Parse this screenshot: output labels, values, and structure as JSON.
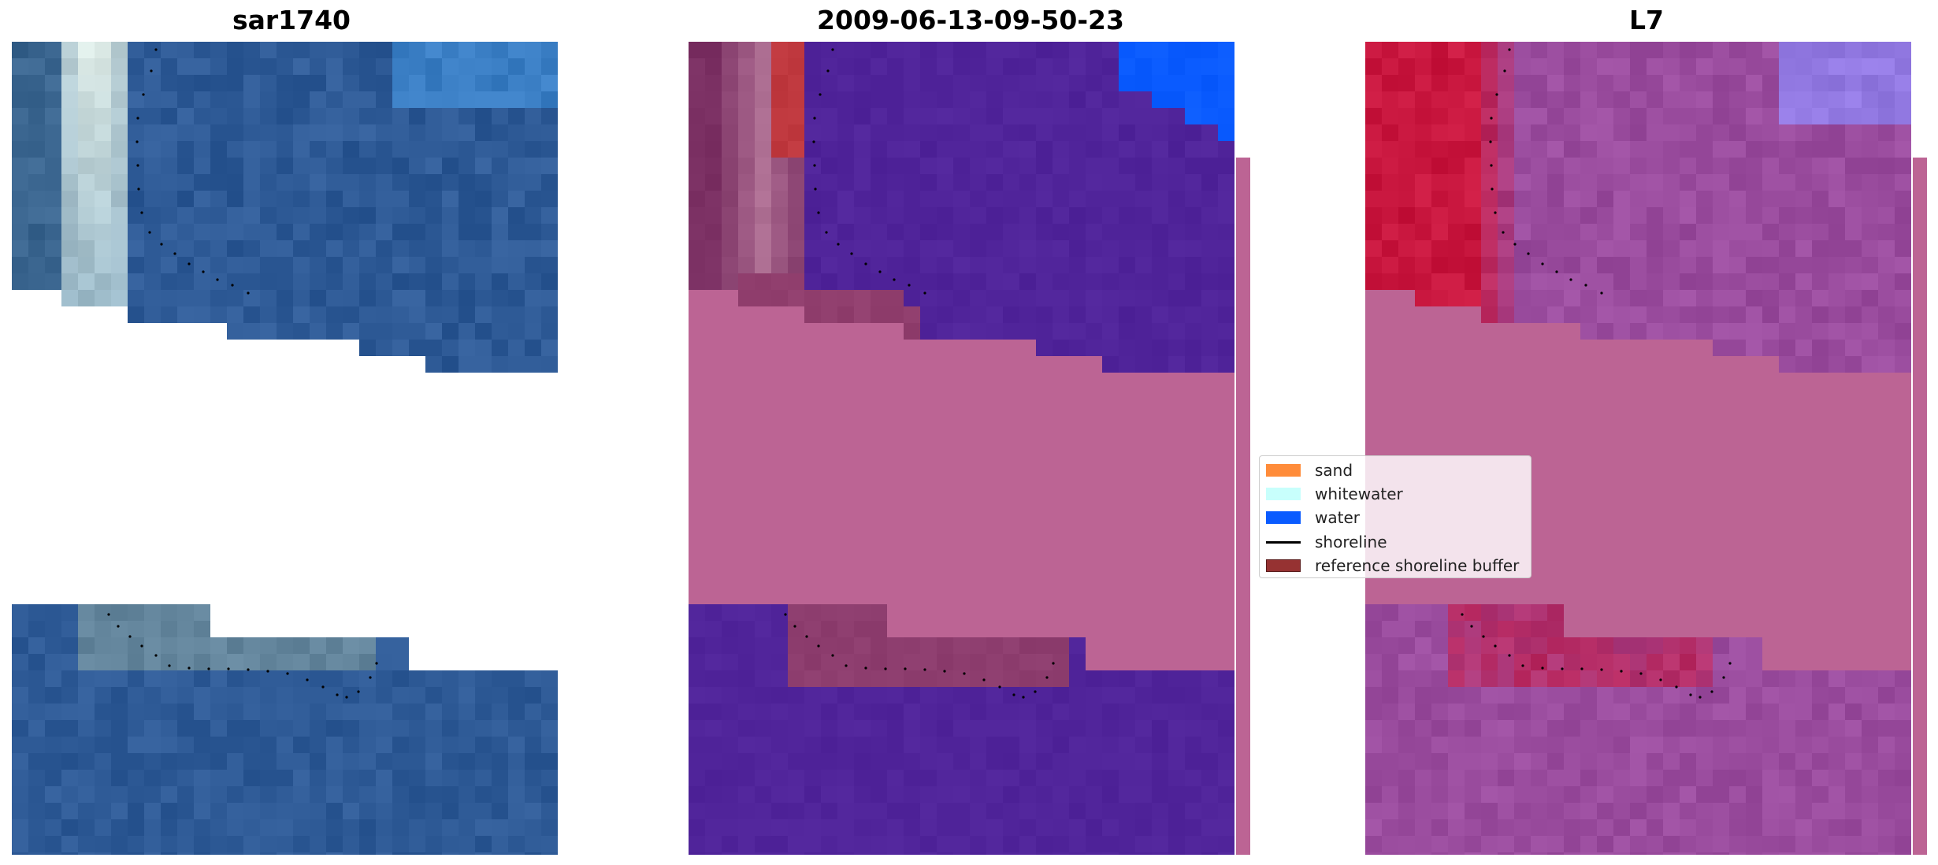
{
  "titles": {
    "left": "sar1740",
    "middle": "2009-06-13-09-50-23",
    "right": "L7"
  },
  "legend": {
    "items": [
      {
        "label": "sand",
        "color": "#ff8c3a",
        "kind": "patch"
      },
      {
        "label": "whitewater",
        "color": "#c8fffc",
        "kind": "patch"
      },
      {
        "label": "water",
        "color": "#0a5bff",
        "kind": "patch"
      },
      {
        "label": "shoreline",
        "color": "#000000",
        "kind": "line"
      },
      {
        "label": "reference shoreline buffer",
        "color": "#963232",
        "kind": "patch",
        "edge": "#5a1a1a"
      }
    ]
  },
  "colors": {
    "nodata_overlay": "#bc6494",
    "water_class": "#50249a",
    "water_bright": "#0a5bff",
    "buffer_class": "#c0393f",
    "rgb_water": "#2e5a96",
    "rgb_surf": "#e8f2ea",
    "index_positive": "#c8163e",
    "index_negative": "#9a4c9e",
    "index_cool": "#8e8cff"
  }
}
